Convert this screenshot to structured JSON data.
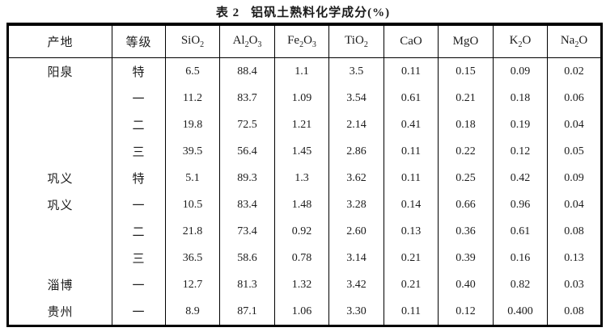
{
  "title": {
    "label": "表 2",
    "text": "铝矾土熟料化学成分(%)"
  },
  "table": {
    "columns": [
      "产地",
      "等级",
      "SiO2",
      "Al2O3",
      "Fe2O3",
      "TiO2",
      "CaO",
      "MgO",
      "K2O",
      "Na2O"
    ],
    "rows": [
      [
        "阳泉",
        "特",
        "6.5",
        "88.4",
        "1.1",
        "3.5",
        "0.11",
        "0.15",
        "0.09",
        "0.02"
      ],
      [
        "",
        "一",
        "11.2",
        "83.7",
        "1.09",
        "3.54",
        "0.61",
        "0.21",
        "0.18",
        "0.06"
      ],
      [
        "",
        "二",
        "19.8",
        "72.5",
        "1.21",
        "2.14",
        "0.41",
        "0.18",
        "0.19",
        "0.04"
      ],
      [
        "",
        "三",
        "39.5",
        "56.4",
        "1.45",
        "2.86",
        "0.11",
        "0.22",
        "0.12",
        "0.05"
      ],
      [
        "巩义",
        "特",
        "5.1",
        "89.3",
        "1.3",
        "3.62",
        "0.11",
        "0.25",
        "0.42",
        "0.09"
      ],
      [
        "巩义",
        "一",
        "10.5",
        "83.4",
        "1.48",
        "3.28",
        "0.14",
        "0.66",
        "0.96",
        "0.04"
      ],
      [
        "",
        "二",
        "21.8",
        "73.4",
        "0.92",
        "2.60",
        "0.13",
        "0.36",
        "0.61",
        "0.08"
      ],
      [
        "",
        "三",
        "36.5",
        "58.6",
        "0.78",
        "3.14",
        "0.21",
        "0.39",
        "0.16",
        "0.13"
      ],
      [
        "淄博",
        "一",
        "12.7",
        "81.3",
        "1.32",
        "3.42",
        "0.21",
        "0.40",
        "0.82",
        "0.03"
      ],
      [
        "贵州",
        "一",
        "8.9",
        "87.1",
        "1.06",
        "3.30",
        "0.11",
        "0.12",
        "0.400",
        "0.08"
      ]
    ]
  }
}
